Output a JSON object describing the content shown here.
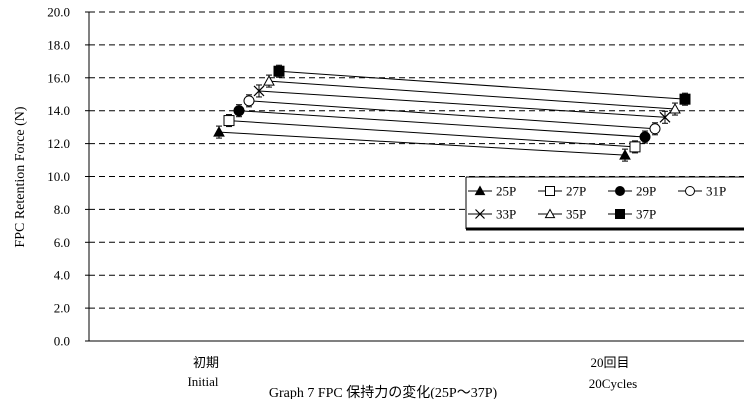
{
  "chart_data": {
    "type": "line",
    "title": "Graph 7 FPC 保持力の変化(25P～37P)",
    "ylabel": "FPC Retention Force (N)",
    "ylim": [
      0,
      20
    ],
    "yticks": [
      "0.0",
      "2.0",
      "4.0",
      "6.0",
      "8.0",
      "10.0",
      "12.0",
      "14.0",
      "16.0",
      "18.0",
      "20.0"
    ],
    "categories": [
      {
        "jp": "初期",
        "en": "Initial"
      },
      {
        "jp": "20回目",
        "en": "20Cycles"
      }
    ],
    "grid": "horizontal dashed",
    "legend": "right, inside plot",
    "series": [
      {
        "name": "25P",
        "marker": "triangle-filled",
        "values": [
          12.7,
          11.3
        ]
      },
      {
        "name": "27P",
        "marker": "square-open",
        "values": [
          13.4,
          11.8
        ]
      },
      {
        "name": "29P",
        "marker": "circle-filled",
        "values": [
          14.0,
          12.4
        ]
      },
      {
        "name": "31P",
        "marker": "circle-open",
        "values": [
          14.6,
          12.9
        ]
      },
      {
        "name": "33P",
        "marker": "x",
        "values": [
          15.2,
          13.6
        ]
      },
      {
        "name": "35P",
        "marker": "triangle-open",
        "values": [
          15.8,
          14.1
        ]
      },
      {
        "name": "37P",
        "marker": "square-filled",
        "values": [
          16.4,
          14.7
        ]
      }
    ]
  }
}
